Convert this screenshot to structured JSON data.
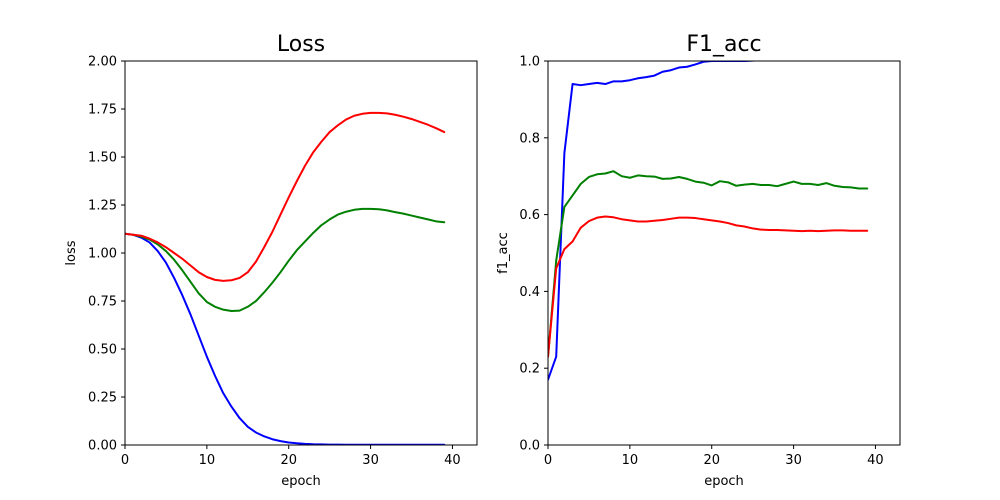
{
  "chart_data": [
    {
      "type": "line",
      "title": "Loss",
      "xlabel": "epoch",
      "ylabel": "loss",
      "xlim": [
        0,
        43
      ],
      "ylim": [
        0,
        2.0
      ],
      "xticks": [
        0,
        10,
        20,
        30,
        40
      ],
      "xtick_labels": [
        "0",
        "10",
        "20",
        "30",
        "40"
      ],
      "yticks": [
        0,
        0.25,
        0.5,
        0.75,
        1.0,
        1.25,
        1.5,
        1.75,
        2.0
      ],
      "ytick_labels": [
        "0.00",
        "0.25",
        "0.50",
        "0.75",
        "1.00",
        "1.25",
        "1.50",
        "1.75",
        "2.00"
      ],
      "grid": false,
      "x": [
        0,
        1,
        2,
        3,
        4,
        5,
        6,
        7,
        8,
        9,
        10,
        11,
        12,
        13,
        14,
        15,
        16,
        17,
        18,
        19,
        20,
        21,
        22,
        23,
        24,
        25,
        26,
        27,
        28,
        29,
        30,
        31,
        32,
        33,
        34,
        35,
        36,
        37,
        38,
        39
      ],
      "series": [
        {
          "color": "#0000ff",
          "values": [
            1.1,
            1.095,
            1.08,
            1.055,
            1.01,
            0.95,
            0.87,
            0.78,
            0.68,
            0.57,
            0.46,
            0.36,
            0.27,
            0.2,
            0.14,
            0.095,
            0.065,
            0.045,
            0.03,
            0.02,
            0.013,
            0.009,
            0.006,
            0.004,
            0.003,
            0.002,
            0.002,
            0.001,
            0.001,
            0.001,
            0.001,
            0.001,
            0.001,
            0.001,
            0.001,
            0.001,
            0.001,
            0.001,
            0.001,
            0.001
          ]
        },
        {
          "color": "#008000",
          "values": [
            1.1,
            1.095,
            1.085,
            1.07,
            1.045,
            1.01,
            0.965,
            0.91,
            0.85,
            0.79,
            0.745,
            0.72,
            0.705,
            0.698,
            0.7,
            0.72,
            0.75,
            0.795,
            0.845,
            0.9,
            0.96,
            1.015,
            1.06,
            1.105,
            1.145,
            1.175,
            1.2,
            1.215,
            1.225,
            1.23,
            1.23,
            1.228,
            1.222,
            1.213,
            1.205,
            1.195,
            1.185,
            1.175,
            1.165,
            1.16
          ]
        },
        {
          "color": "#ff0000",
          "values": [
            1.1,
            1.095,
            1.09,
            1.075,
            1.055,
            1.03,
            1.0,
            0.97,
            0.935,
            0.9,
            0.875,
            0.86,
            0.855,
            0.858,
            0.87,
            0.9,
            0.955,
            1.03,
            1.11,
            1.2,
            1.29,
            1.375,
            1.455,
            1.525,
            1.58,
            1.63,
            1.665,
            1.695,
            1.715,
            1.725,
            1.73,
            1.73,
            1.727,
            1.72,
            1.71,
            1.698,
            1.683,
            1.668,
            1.65,
            1.63
          ]
        }
      ]
    },
    {
      "type": "line",
      "title": "F1_acc",
      "xlabel": "epoch",
      "ylabel": "f1_acc",
      "xlim": [
        0,
        43
      ],
      "ylim": [
        0,
        1.0
      ],
      "xticks": [
        0,
        10,
        20,
        30,
        40
      ],
      "xtick_labels": [
        "0",
        "10",
        "20",
        "30",
        "40"
      ],
      "yticks": [
        0,
        0.2,
        0.4,
        0.6,
        0.8,
        1.0
      ],
      "ytick_labels": [
        "0.0",
        "0.2",
        "0.4",
        "0.6",
        "0.8",
        "1.0"
      ],
      "grid": false,
      "x": [
        0,
        1,
        2,
        3,
        4,
        5,
        6,
        7,
        8,
        9,
        10,
        11,
        12,
        13,
        14,
        15,
        16,
        17,
        18,
        19,
        20,
        21,
        22,
        23,
        24,
        25,
        26,
        27,
        28,
        29,
        30,
        31,
        32,
        33,
        34,
        35,
        36,
        37,
        38,
        39
      ],
      "series": [
        {
          "color": "#0000ff",
          "values": [
            0.17,
            0.23,
            0.76,
            0.94,
            0.937,
            0.94,
            0.943,
            0.94,
            0.947,
            0.947,
            0.95,
            0.955,
            0.958,
            0.962,
            0.972,
            0.976,
            0.983,
            0.985,
            0.991,
            0.998,
            1.0,
            1.0,
            1.0,
            1.0,
            1.0,
            1.001,
            1.002,
            1.003,
            1.003,
            1.004,
            1.004,
            1.004,
            1.004,
            1.004,
            1.004,
            1.004,
            1.004,
            1.004,
            1.004,
            1.004
          ]
        },
        {
          "color": "#008000",
          "values": [
            0.23,
            0.48,
            0.62,
            0.65,
            0.68,
            0.698,
            0.705,
            0.707,
            0.713,
            0.7,
            0.696,
            0.702,
            0.7,
            0.699,
            0.693,
            0.694,
            0.698,
            0.693,
            0.686,
            0.683,
            0.676,
            0.687,
            0.684,
            0.675,
            0.678,
            0.68,
            0.677,
            0.677,
            0.674,
            0.68,
            0.686,
            0.68,
            0.68,
            0.677,
            0.682,
            0.675,
            0.672,
            0.671,
            0.668,
            0.668
          ]
        },
        {
          "color": "#ff0000",
          "values": [
            0.23,
            0.46,
            0.51,
            0.53,
            0.566,
            0.583,
            0.592,
            0.595,
            0.593,
            0.588,
            0.585,
            0.582,
            0.582,
            0.584,
            0.586,
            0.589,
            0.592,
            0.592,
            0.591,
            0.588,
            0.585,
            0.582,
            0.578,
            0.572,
            0.569,
            0.564,
            0.561,
            0.56,
            0.56,
            0.559,
            0.558,
            0.557,
            0.558,
            0.557,
            0.558,
            0.559,
            0.559,
            0.558,
            0.558,
            0.558
          ]
        }
      ]
    }
  ]
}
